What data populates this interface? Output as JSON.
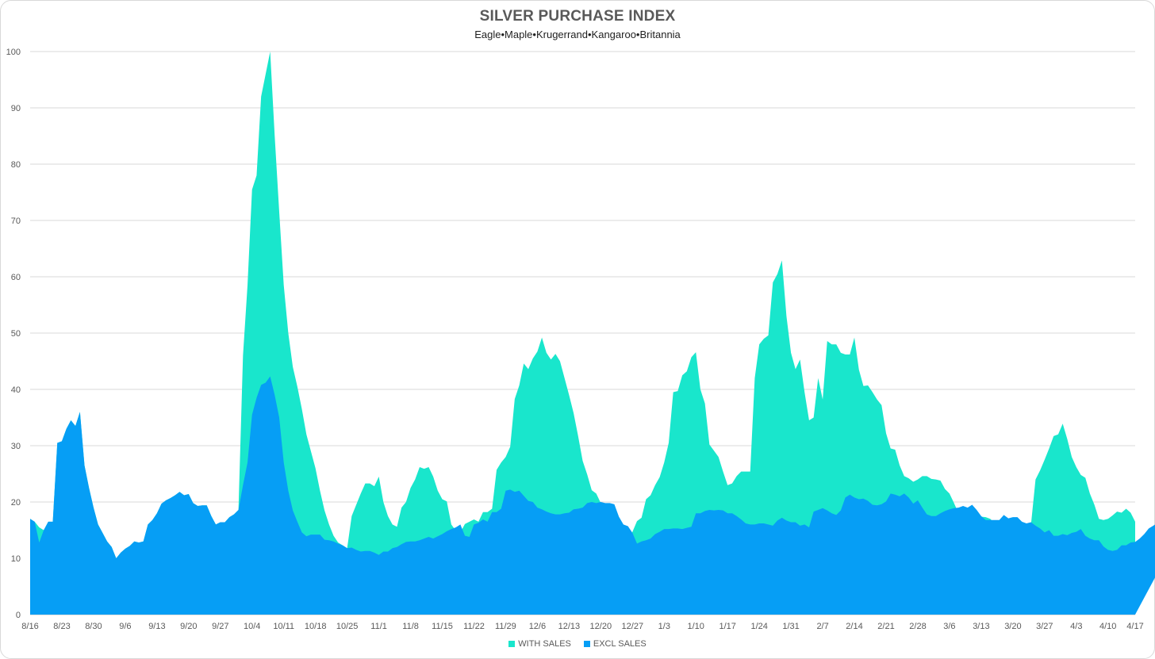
{
  "chart_data": {
    "type": "area",
    "title": "SILVER PURCHASE INDEX",
    "subtitle": "Eagle•Maple•Krugerrand•Kangaroo•Britannia",
    "xlabel": "",
    "ylabel": "",
    "ylim": [
      0,
      100
    ],
    "y_ticks": [
      0,
      10,
      20,
      30,
      40,
      50,
      60,
      70,
      80,
      90,
      100
    ],
    "grid": true,
    "legend_position": "bottom",
    "x_tick_labels": [
      "8/16",
      "8/23",
      "8/30",
      "9/6",
      "9/13",
      "9/20",
      "9/27",
      "10/4",
      "10/11",
      "10/18",
      "10/25",
      "11/1",
      "11/8",
      "11/15",
      "11/22",
      "11/29",
      "12/6",
      "12/13",
      "12/20",
      "12/27",
      "1/3",
      "1/10",
      "1/17",
      "1/24",
      "1/31",
      "2/7",
      "2/14",
      "2/21",
      "2/28",
      "3/6",
      "3/13",
      "3/20",
      "3/27",
      "4/3",
      "4/10",
      "4/17"
    ],
    "series": [
      {
        "name": "WITH SALES",
        "color": "#19e6cc",
        "values": [
          17,
          16.5,
          15.5,
          15,
          16.5,
          16.5,
          30.5,
          30.8,
          33,
          34.5,
          33.5,
          36,
          26.5,
          22.5,
          19,
          16,
          14.5,
          13,
          12,
          10,
          11,
          11.7,
          12.2,
          13,
          12.8,
          13,
          16,
          16.8,
          18,
          19.7,
          20.3,
          20.7,
          21.2,
          21.8,
          21.2,
          21.4,
          19.8,
          19.3,
          19.4,
          19.4,
          17.5,
          16,
          16.4,
          16.4,
          17.3,
          17.8,
          18.6,
          46,
          58.5,
          75.5,
          78,
          92,
          96,
          100,
          85,
          71.5,
          58.5,
          50,
          44,
          40.5,
          36.5,
          32,
          29,
          26,
          22,
          18.5,
          16,
          14,
          12.8,
          12.3,
          11.8,
          17.5,
          19.5,
          21.5,
          23.3,
          23.3,
          22.8,
          24.5,
          20,
          17.5,
          16,
          15.6,
          19,
          20,
          22.5,
          24,
          26.2,
          25.9,
          26.2,
          24.5,
          22,
          20.5,
          20.1,
          16,
          14.9,
          14.6,
          16.1,
          16.5,
          16.9,
          16.5,
          18.2,
          18.2,
          18.8,
          25.7,
          27,
          28,
          29.8,
          38.3,
          40.7,
          44.6,
          43.6,
          45.5,
          46.7,
          49.2,
          46.5,
          45.3,
          46.3,
          45,
          42,
          39,
          35.8,
          31.7,
          27.3,
          24.9,
          22.1,
          21.5,
          19.8,
          17.4,
          16,
          15.7,
          14.5,
          12.6,
          13,
          14.7,
          16.6,
          17.2,
          20.5,
          21.2,
          23,
          24.4,
          27,
          30.5,
          39.5,
          39.7,
          42.5,
          43.2,
          45.7,
          46.6,
          40,
          37.5,
          30.2,
          29.1,
          28,
          25.4,
          23,
          23.3,
          24.6,
          25.4,
          25.4,
          25.4,
          42,
          48,
          49,
          49.6,
          59,
          60.5,
          62.9,
          53,
          46.5,
          43.6,
          45.3,
          39.5,
          34.5,
          35,
          42,
          38.2,
          48.6,
          48,
          48,
          46.5,
          46.2,
          46.2,
          49.2,
          43.5,
          40.6,
          40.7,
          39.5,
          38.2,
          37.2,
          32.2,
          29.5,
          29.3,
          26.5,
          24.6,
          24.2,
          23.6,
          24,
          24.6,
          24.6,
          24.1,
          24,
          23.8,
          22.3,
          21.5,
          19.8,
          18,
          17.3,
          17,
          17.1,
          17.5,
          17.4,
          17.3,
          17,
          16.2,
          15.8,
          15,
          14.5,
          14,
          14,
          14.3,
          14.1,
          16,
          24,
          25.6,
          27.5,
          29.5,
          31.7,
          32,
          33.9,
          31.2,
          28,
          26.2,
          24.8,
          24.3,
          21.5,
          19.5,
          17,
          16.8,
          17,
          17.6,
          18.3,
          18.1,
          18.8,
          18.1,
          16.5
        ],
        "values_note": ""
      },
      {
        "name": "EXCL SALES",
        "color": "#069ef5",
        "values": [
          17,
          16.5,
          12.8,
          15,
          16.5,
          16.5,
          30.5,
          30.8,
          33,
          34.5,
          33.5,
          36,
          26.5,
          22.5,
          19,
          16,
          14.5,
          13,
          12,
          10,
          11,
          11.7,
          12.2,
          13,
          12.8,
          13,
          16,
          16.8,
          18,
          19.7,
          20.3,
          20.7,
          21.2,
          21.8,
          21.2,
          21.4,
          19.8,
          19.3,
          19.4,
          19.4,
          17.5,
          16,
          16.4,
          16.4,
          17.3,
          17.8,
          18.6,
          23,
          27,
          35.5,
          38.5,
          40.8,
          41.2,
          42.3,
          39,
          35,
          27,
          22,
          18.5,
          16.5,
          14.6,
          13.9,
          14.2,
          14.2,
          14.2,
          13.3,
          13.2,
          13,
          12.6,
          12.3,
          11.8,
          11.9,
          11.5,
          11.2,
          11.3,
          11.3,
          11,
          10.6,
          11.2,
          11.2,
          11.8,
          12,
          12.5,
          12.9,
          13,
          13,
          13.2,
          13.5,
          13.8,
          13.5,
          13.9,
          14.3,
          14.8,
          15.2,
          15.5,
          16,
          14,
          13.8,
          16,
          16.3,
          16.9,
          16.5,
          18.2,
          18.2,
          18.8,
          22,
          22.2,
          21.8,
          22,
          21.1,
          20.2,
          20,
          19,
          18.7,
          18.3,
          18,
          17.8,
          17.8,
          18,
          18.1,
          18.7,
          18.8,
          19,
          19.8,
          20,
          19.8,
          20,
          19.8,
          19.8,
          19.6,
          17.4,
          16,
          15.7,
          14.5,
          12.6,
          13,
          13.2,
          13.5,
          14.3,
          14.7,
          15.2,
          15.2,
          15.3,
          15.3,
          15.2,
          15.4,
          15.6,
          18,
          18,
          18.4,
          18.6,
          18.5,
          18.6,
          18.5,
          18,
          18,
          17.5,
          16.9,
          16.2,
          16,
          16,
          16.2,
          16.2,
          16,
          15.8,
          16.7,
          17.2,
          16.7,
          16.4,
          16.4,
          15.8,
          16,
          15.5,
          18.3,
          18.6,
          18.9,
          18.5,
          18,
          17.7,
          18.5,
          20.8,
          21.3,
          20.8,
          20.5,
          20.6,
          20.2,
          19.5,
          19.4,
          19.6,
          20.1,
          21.5,
          21.3,
          21,
          21.5,
          20.8,
          19.7,
          20.3,
          19,
          17.8,
          17.5,
          17.5,
          18,
          18.4,
          18.7,
          18.9,
          19,
          19.3,
          19,
          19.5,
          18.6,
          17.5,
          16.8,
          16.8,
          16.8,
          16.8,
          17.7,
          17.1,
          17.3,
          17.3,
          16.5,
          16.2,
          16.4,
          15.8,
          15.3,
          14.6,
          15,
          14,
          14,
          14.3,
          14.1,
          14.5,
          14.7,
          15.2,
          14,
          13.5,
          13.2,
          13.2,
          12.1,
          11.5,
          11.3,
          11.5,
          12.3,
          12.3,
          12.8,
          12.9,
          13.5,
          14.3,
          15.3,
          15.8,
          16.3,
          16.9,
          17.5,
          17.3,
          17.6,
          18.1,
          16.5
        ]
      }
    ]
  }
}
